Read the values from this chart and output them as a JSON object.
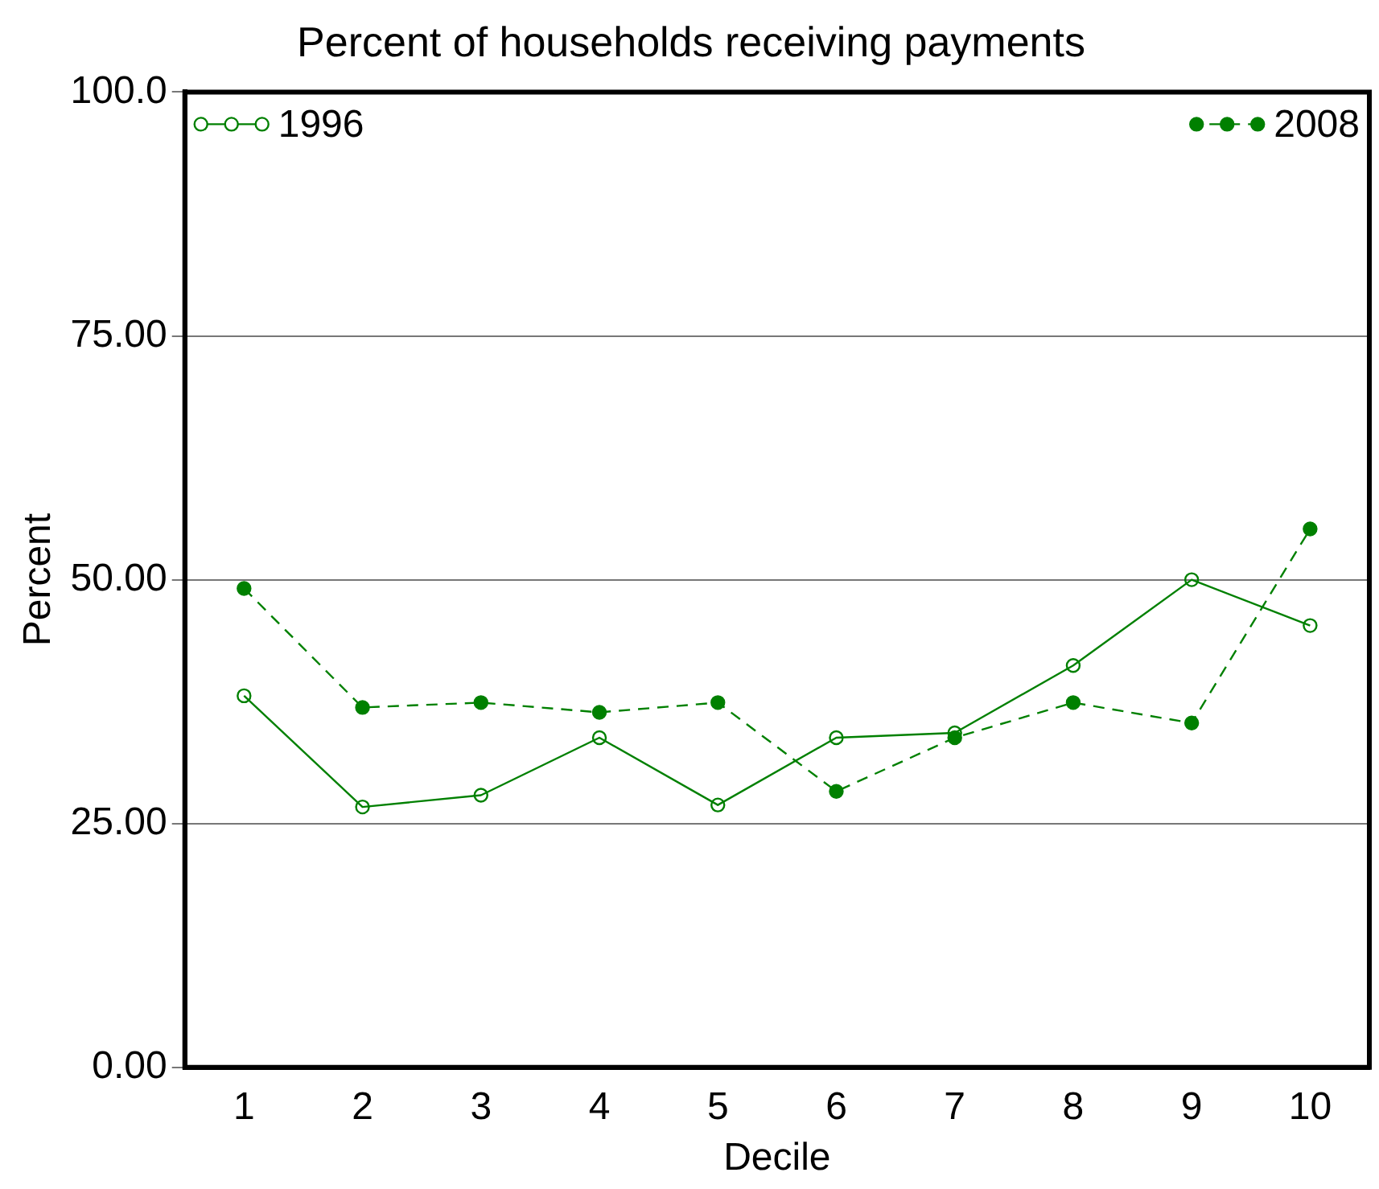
{
  "chart_data": {
    "type": "line",
    "title": "Percent of households receiving payments",
    "xlabel": "Decile",
    "ylabel": "Percent",
    "categories": [
      "1",
      "2",
      "3",
      "4",
      "5",
      "6",
      "7",
      "8",
      "9",
      "10"
    ],
    "series": [
      {
        "name": "1996",
        "color": "#008000",
        "line_style": "solid",
        "values": [
          38.1,
          26.7,
          27.9,
          33.8,
          26.9,
          33.8,
          34.3,
          41.2,
          50.0,
          45.3
        ]
      },
      {
        "name": "2008",
        "color": "#008000",
        "line_style": "dashed",
        "values": [
          49.1,
          36.9,
          37.4,
          36.4,
          37.4,
          28.3,
          33.8,
          37.4,
          35.3,
          55.2
        ]
      }
    ],
    "ylim": [
      0,
      100
    ],
    "yticks": [
      {
        "value": 0,
        "label": "0.00"
      },
      {
        "value": 25,
        "label": "25.00"
      },
      {
        "value": 50,
        "label": "50.00"
      },
      {
        "value": 75,
        "label": "75.00"
      },
      {
        "value": 100,
        "label": "100.0"
      }
    ],
    "grid": "y",
    "legend": "top",
    "marker": "circle"
  }
}
